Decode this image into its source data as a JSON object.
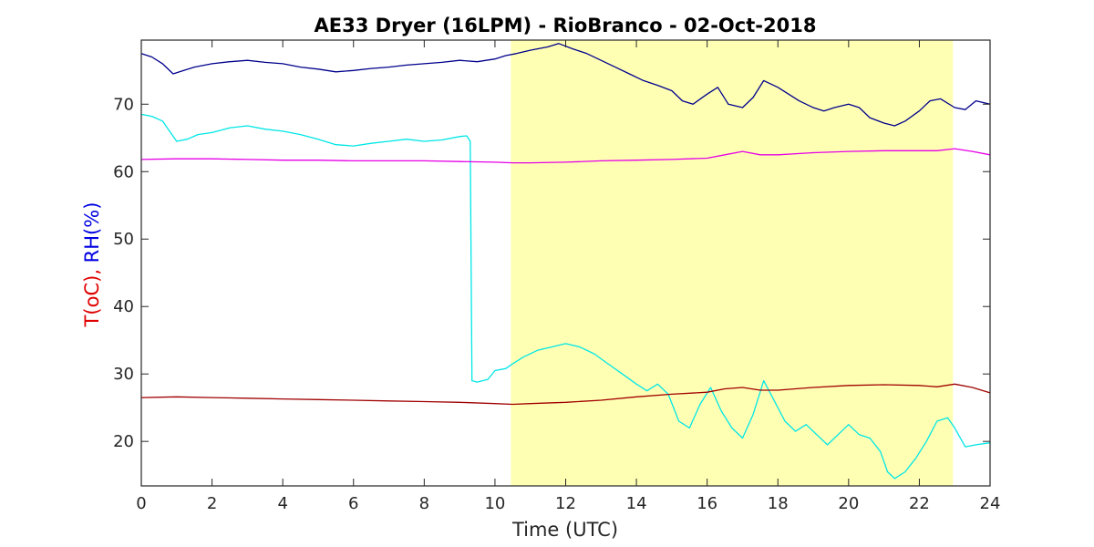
{
  "chart_data": {
    "type": "line",
    "title": "AE33 Dryer (16LPM)  - RioBranco - 02-Oct-2018",
    "xlabel": "Time (UTC)",
    "ylabel_parts": [
      {
        "text": "T(oC),",
        "color": "#e00000"
      },
      {
        "text": " RH(%)",
        "color": "#0000e0"
      }
    ],
    "xlim": [
      0,
      24
    ],
    "ylim": [
      13.4,
      79.5
    ],
    "xticks": [
      0,
      2,
      4,
      6,
      8,
      10,
      12,
      14,
      16,
      18,
      20,
      22,
      24
    ],
    "yticks": [
      20,
      30,
      40,
      50,
      60,
      70
    ],
    "grid": false,
    "highlight": {
      "x_start": 10.45,
      "x_end": 22.95,
      "color": "#ffffb4"
    },
    "series": [
      {
        "color": "#00008c",
        "x": [
          0,
          0.3,
          0.6,
          0.9,
          1.2,
          1.5,
          2,
          2.5,
          3,
          3.5,
          4,
          4.5,
          5,
          5.5,
          6,
          6.5,
          7,
          7.5,
          8,
          8.5,
          9,
          9.5,
          10,
          10.3,
          10.6,
          11,
          11.5,
          11.8,
          12.2,
          12.6,
          13,
          13.4,
          13.8,
          14.2,
          14.6,
          15,
          15.3,
          15.6,
          16,
          16.3,
          16.6,
          17,
          17.3,
          17.6,
          18,
          18.3,
          18.6,
          19,
          19.3,
          19.6,
          20,
          20.3,
          20.6,
          21,
          21.3,
          21.6,
          22,
          22.3,
          22.6,
          23,
          23.3,
          23.6,
          24
        ],
        "y": [
          77.5,
          77,
          76,
          74.5,
          75,
          75.5,
          76,
          76.3,
          76.5,
          76.2,
          76,
          75.5,
          75.2,
          74.8,
          75,
          75.3,
          75.5,
          75.8,
          76,
          76.2,
          76.5,
          76.3,
          76.7,
          77.2,
          77.5,
          78,
          78.5,
          79,
          78.2,
          77.5,
          76.5,
          75.5,
          74.5,
          73.5,
          72.8,
          72,
          70.5,
          70,
          71.5,
          72.5,
          70,
          69.5,
          71,
          73.5,
          72.5,
          71.5,
          70.5,
          69.5,
          69,
          69.5,
          70,
          69.5,
          68,
          67.2,
          66.8,
          67.5,
          69,
          70.5,
          70.8,
          69.5,
          69.2,
          70.5,
          70
        ]
      },
      {
        "color": "#00e6e6",
        "x": [
          0,
          0.3,
          0.6,
          0.8,
          1,
          1.3,
          1.6,
          2,
          2.5,
          3,
          3.5,
          4,
          4.5,
          5,
          5.5,
          6,
          6.5,
          7,
          7.5,
          8,
          8.5,
          9,
          9.2,
          9.3,
          9.35,
          9.5,
          9.8,
          10,
          10.3,
          10.5,
          10.8,
          11.2,
          11.6,
          12,
          12.4,
          12.8,
          13.2,
          13.6,
          14,
          14.3,
          14.6,
          14.9,
          15.2,
          15.5,
          15.8,
          16.1,
          16.4,
          16.7,
          17,
          17.3,
          17.6,
          17.9,
          18.2,
          18.5,
          18.8,
          19.1,
          19.4,
          19.7,
          20,
          20.3,
          20.6,
          20.9,
          21.1,
          21.3,
          21.6,
          21.9,
          22.2,
          22.5,
          22.8,
          23,
          23.3,
          23.6,
          24
        ],
        "y": [
          68.5,
          68.2,
          67.5,
          66,
          64.5,
          64.8,
          65.5,
          65.8,
          66.5,
          66.8,
          66.3,
          66,
          65.5,
          64.8,
          64,
          63.8,
          64.2,
          64.5,
          64.8,
          64.5,
          64.7,
          65.2,
          65.3,
          64.5,
          29,
          28.8,
          29.2,
          30.5,
          30.8,
          31.5,
          32.5,
          33.5,
          34,
          34.5,
          34,
          33,
          31.5,
          30,
          28.5,
          27.5,
          28.5,
          27,
          23,
          22,
          25.5,
          28,
          24.5,
          22,
          20.5,
          24,
          29,
          26,
          23,
          21.5,
          22.5,
          21,
          19.5,
          21,
          22.5,
          21,
          20.5,
          18.5,
          15.5,
          14.5,
          15.5,
          17.5,
          20,
          23,
          23.5,
          22,
          19.2,
          19.5,
          19.8
        ]
      },
      {
        "color": "#e600e6",
        "x": [
          0,
          1,
          2,
          3,
          4,
          5,
          6,
          7,
          8,
          9,
          10,
          10.5,
          11,
          12,
          13,
          14,
          15,
          16,
          16.5,
          17,
          17.5,
          18,
          19,
          20,
          21,
          22,
          22.5,
          23,
          23.5,
          24
        ],
        "y": [
          61.8,
          61.9,
          61.9,
          61.8,
          61.7,
          61.7,
          61.6,
          61.6,
          61.6,
          61.5,
          61.4,
          61.3,
          61.3,
          61.4,
          61.6,
          61.7,
          61.8,
          62,
          62.5,
          63,
          62.5,
          62.5,
          62.8,
          63,
          63.1,
          63.1,
          63.1,
          63.4,
          63,
          62.5
        ]
      },
      {
        "color": "#a00000",
        "x": [
          0,
          1,
          2,
          3,
          4,
          5,
          6,
          7,
          8,
          9,
          10,
          10.5,
          11,
          12,
          13,
          14,
          15,
          16,
          16.5,
          17,
          17.5,
          18,
          19,
          20,
          21,
          22,
          22.5,
          23,
          23.5,
          24
        ],
        "y": [
          26.5,
          26.6,
          26.5,
          26.4,
          26.3,
          26.2,
          26.1,
          26,
          25.9,
          25.8,
          25.6,
          25.5,
          25.6,
          25.8,
          26.1,
          26.6,
          27,
          27.3,
          27.8,
          28,
          27.6,
          27.6,
          28,
          28.3,
          28.4,
          28.3,
          28.1,
          28.5,
          28,
          27.2
        ]
      }
    ]
  }
}
